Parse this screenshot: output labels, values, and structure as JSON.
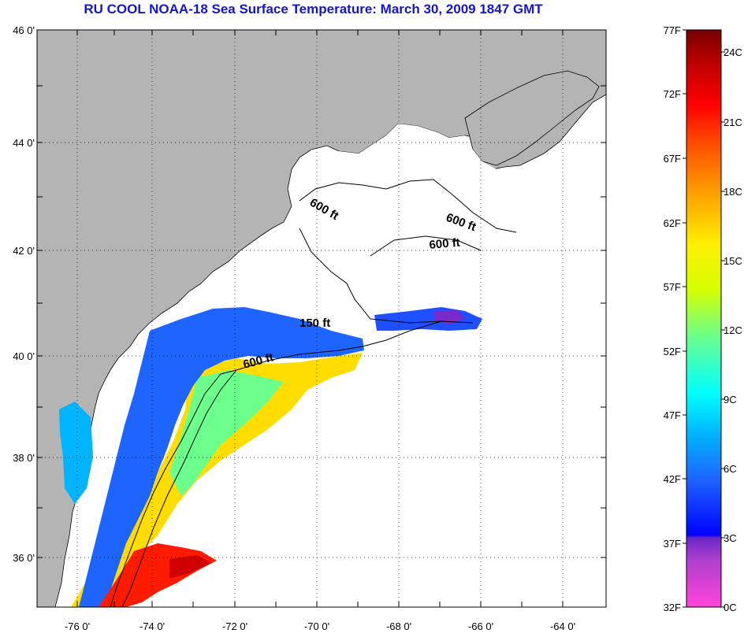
{
  "title": "RU COOL  NOAA-18  Sea Surface Temperature:  March 30, 2009 1847 GMT",
  "map": {
    "lat_labels": [
      "46 0'",
      "44 0'",
      "42 0'",
      "40 0'",
      "38 0'",
      "36 0'"
    ],
    "lon_labels": [
      "-76 0'",
      "-74 0'",
      "-72 0'",
      "-70 0'",
      "-68 0'",
      "-66 0'",
      "-64 0'"
    ],
    "contour_labels": [
      "600 ft",
      "600 ft",
      "600 ft",
      "150 ft",
      "600 ft"
    ],
    "colors": {
      "land": "#b4b4b4",
      "cloud": "#ffffff",
      "coast": "#000000",
      "title": "#1515c8"
    }
  },
  "colorbar": {
    "f_labels": [
      "77F",
      "72F",
      "67F",
      "62F",
      "57F",
      "52F",
      "47F",
      "42F",
      "37F",
      "32F"
    ],
    "c_labels": [
      "24C",
      "21C",
      "18C",
      "15C",
      "12C",
      "9C",
      "6C",
      "3C",
      "0C"
    ],
    "range_f": [
      32,
      77
    ],
    "range_c": [
      0,
      25
    ],
    "colors": [
      "#ff44d8",
      "#b040d0",
      "#6a28c8",
      "#0000ff",
      "#1e64ff",
      "#00b4ff",
      "#00ffff",
      "#6cff8c",
      "#d4ff00",
      "#ffee00",
      "#ff9c00",
      "#ff5000",
      "#ff0000",
      "#c00000",
      "#780000"
    ]
  }
}
